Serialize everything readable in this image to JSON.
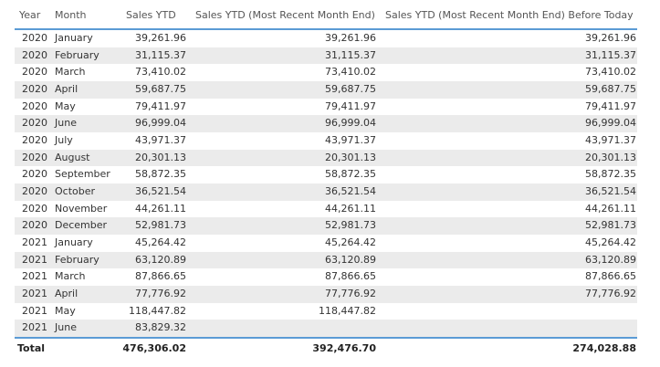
{
  "columns": [
    "Year",
    "Month",
    "Sales YTD",
    "Sales YTD (Most Recent Month End)",
    "Sales YTD (Most Recent Month End) Before Today"
  ],
  "rows": [
    [
      "2020",
      "January",
      "39,261.96",
      "39,261.96",
      "39,261.96"
    ],
    [
      "2020",
      "February",
      "31,115.37",
      "31,115.37",
      "31,115.37"
    ],
    [
      "2020",
      "March",
      "73,410.02",
      "73,410.02",
      "73,410.02"
    ],
    [
      "2020",
      "April",
      "59,687.75",
      "59,687.75",
      "59,687.75"
    ],
    [
      "2020",
      "May",
      "79,411.97",
      "79,411.97",
      "79,411.97"
    ],
    [
      "2020",
      "June",
      "96,999.04",
      "96,999.04",
      "96,999.04"
    ],
    [
      "2020",
      "July",
      "43,971.37",
      "43,971.37",
      "43,971.37"
    ],
    [
      "2020",
      "August",
      "20,301.13",
      "20,301.13",
      "20,301.13"
    ],
    [
      "2020",
      "September",
      "58,872.35",
      "58,872.35",
      "58,872.35"
    ],
    [
      "2020",
      "October",
      "36,521.54",
      "36,521.54",
      "36,521.54"
    ],
    [
      "2020",
      "November",
      "44,261.11",
      "44,261.11",
      "44,261.11"
    ],
    [
      "2020",
      "December",
      "52,981.73",
      "52,981.73",
      "52,981.73"
    ],
    [
      "2021",
      "January",
      "45,264.42",
      "45,264.42",
      "45,264.42"
    ],
    [
      "2021",
      "February",
      "63,120.89",
      "63,120.89",
      "63,120.89"
    ],
    [
      "2021",
      "March",
      "87,866.65",
      "87,866.65",
      "87,866.65"
    ],
    [
      "2021",
      "April",
      "77,776.92",
      "77,776.92",
      "77,776.92"
    ],
    [
      "2021",
      "May",
      "118,447.82",
      "118,447.82",
      ""
    ],
    [
      "2021",
      "June",
      "83,829.32",
      "",
      ""
    ]
  ],
  "total": {
    "label": "Total",
    "values": [
      "476,306.02",
      "392,476.70",
      "274,028.88"
    ]
  },
  "colors": {
    "header_border": "#5b9bd5",
    "alt_row": "#ebebeb"
  }
}
